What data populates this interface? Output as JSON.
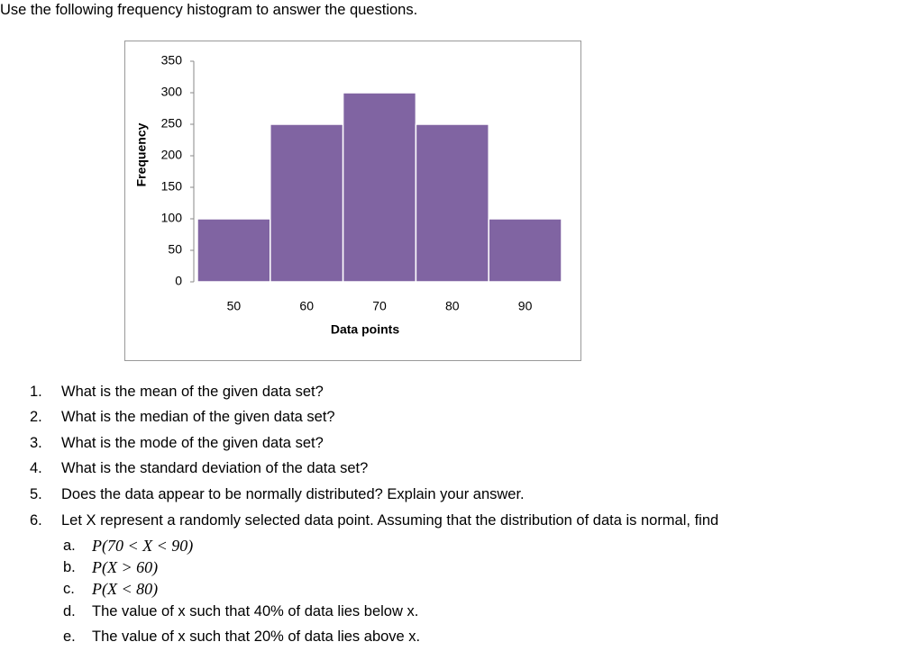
{
  "instruction": "Use the following frequency histogram to answer the questions.",
  "chart_data": {
    "type": "bar",
    "x_label": "Data points",
    "y_label": "Frequency",
    "categories": [
      "50",
      "60",
      "70",
      "80",
      "90"
    ],
    "values": [
      100,
      250,
      300,
      250,
      100
    ],
    "color": "#8064a2",
    "ylim": [
      0,
      350
    ],
    "yticks": [
      0,
      50,
      100,
      150,
      200,
      250,
      300,
      350
    ],
    "grid": false
  },
  "questions": [
    {
      "number": "1.",
      "text": "What is the mean of the given data set?"
    },
    {
      "number": "2.",
      "text": "What is the median of the given data set?"
    },
    {
      "number": "3.",
      "text": "What is the mode of the given data set?"
    },
    {
      "number": "4.",
      "text": "What is the standard deviation of the data set?"
    },
    {
      "number": "5.",
      "text": "Does the data appear to be normally distributed? Explain your answer."
    },
    {
      "number": "6.",
      "text": "Let X represent a randomly selected data point. Assuming that the distribution of data is normal, find"
    }
  ],
  "subquestions": [
    {
      "letter": "a.",
      "text": "P(70 < X < 90)"
    },
    {
      "letter": "b.",
      "text": "P(X > 60)"
    },
    {
      "letter": "c.",
      "text": "P(X < 80)"
    },
    {
      "letter": "d.",
      "text": "The value of x such that 40% of data lies below x."
    },
    {
      "letter": "e.",
      "text": "The value of x such that 20% of data lies above x."
    }
  ]
}
